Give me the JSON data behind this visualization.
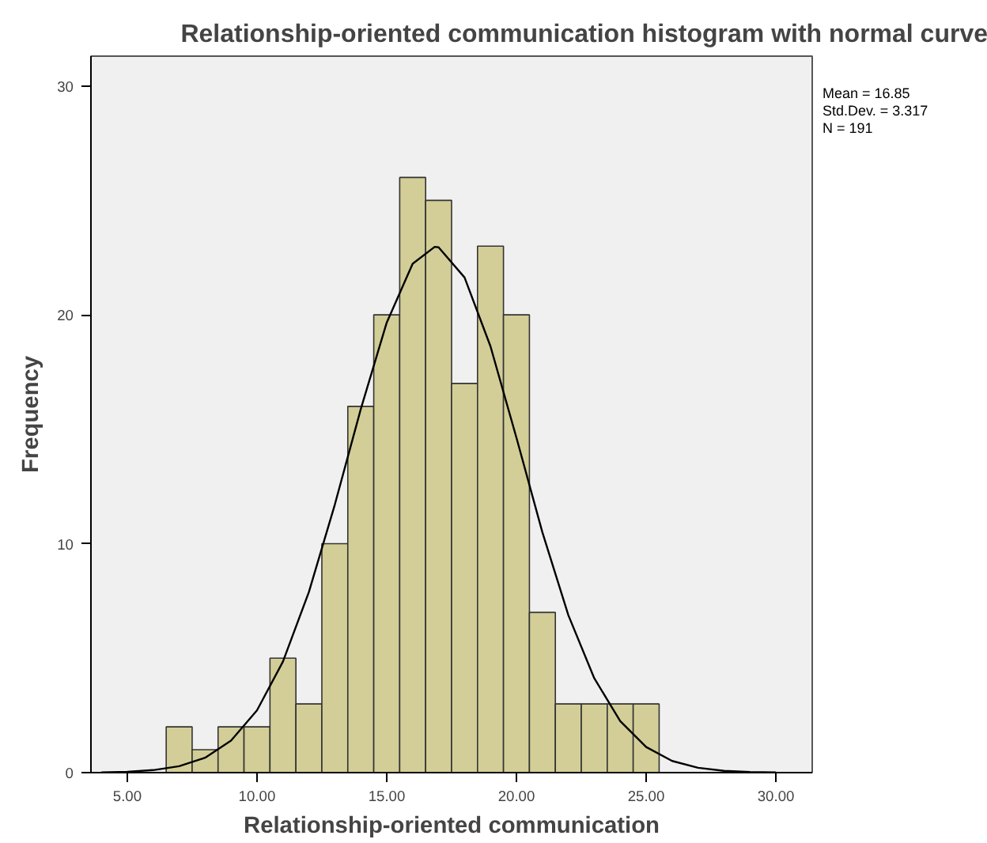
{
  "chart_data": {
    "type": "histogram",
    "title": "Relationship-oriented communication histogram with normal curve",
    "xlabel": "Relationship-oriented communication",
    "ylabel": "Frequency",
    "bins": [
      6.5,
      7.5,
      8.5,
      9.5,
      10.5,
      11.5,
      12.5,
      13.5,
      14.5,
      15.5,
      16.5,
      17.5,
      18.5,
      19.5,
      20.5,
      21.5,
      22.5,
      23.5,
      24.5,
      25.5
    ],
    "values": [
      2,
      1,
      2,
      2,
      5,
      3,
      10,
      16,
      20,
      26,
      25,
      17,
      23,
      20,
      7,
      3,
      3,
      3,
      3
    ],
    "color": "#d3ce97",
    "series": [
      {
        "type": "line",
        "color": "#000000",
        "x": [
          4,
          5,
          6,
          7,
          8,
          9,
          10,
          11,
          12,
          13,
          14,
          15,
          16,
          16.85,
          17,
          18,
          19,
          20,
          21,
          22,
          23,
          24,
          25,
          26,
          27,
          28,
          29,
          30
        ],
        "values": [
          0.01,
          0.04,
          0.11,
          0.28,
          0.65,
          1.4,
          2.72,
          4.85,
          7.89,
          11.71,
          15.88,
          19.66,
          22.23,
          22.97,
          22.95,
          21.63,
          18.62,
          14.63,
          10.5,
          6.88,
          4.12,
          2.25,
          1.12,
          0.51,
          0.21,
          0.08,
          0.03,
          0.01
        ]
      }
    ],
    "xlim": [
      3.6,
      31.4
    ],
    "ylim": [
      0,
      31.3
    ],
    "xticks": [
      {
        "value": 5,
        "label": "5.00"
      },
      {
        "value": 10,
        "label": "10.00"
      },
      {
        "value": 15,
        "label": "15.00"
      },
      {
        "value": 20,
        "label": "20.00"
      },
      {
        "value": 25,
        "label": "25.00"
      },
      {
        "value": 30,
        "label": "30.00"
      }
    ],
    "yticks": [
      0,
      10,
      20,
      30
    ],
    "annotations": [
      "Mean = 16.85",
      "Std.Dev. = 3.317",
      "N = 191"
    ],
    "grid": false
  }
}
